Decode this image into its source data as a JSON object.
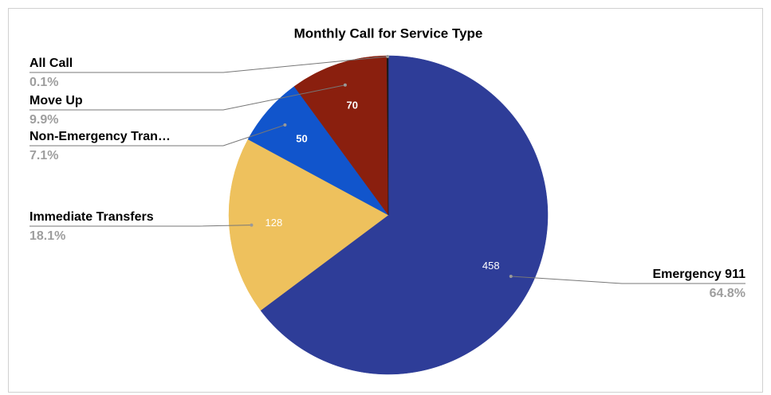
{
  "chart_data": {
    "type": "pie",
    "title": "Monthly Call for Service Type",
    "categories": [
      "Emergency 911",
      "Immediate Transfers",
      "Non-Emergency Tran…",
      "Move Up",
      "All Call"
    ],
    "values": [
      458,
      128,
      50,
      70,
      1
    ],
    "percent_labels": [
      "64.8%",
      "18.1%",
      "7.1%",
      "9.9%",
      "0.1%"
    ],
    "colors": [
      "#2e3d98",
      "#eec15d",
      "#1155cc",
      "#8a1f0e",
      "#1a1a1a"
    ]
  }
}
